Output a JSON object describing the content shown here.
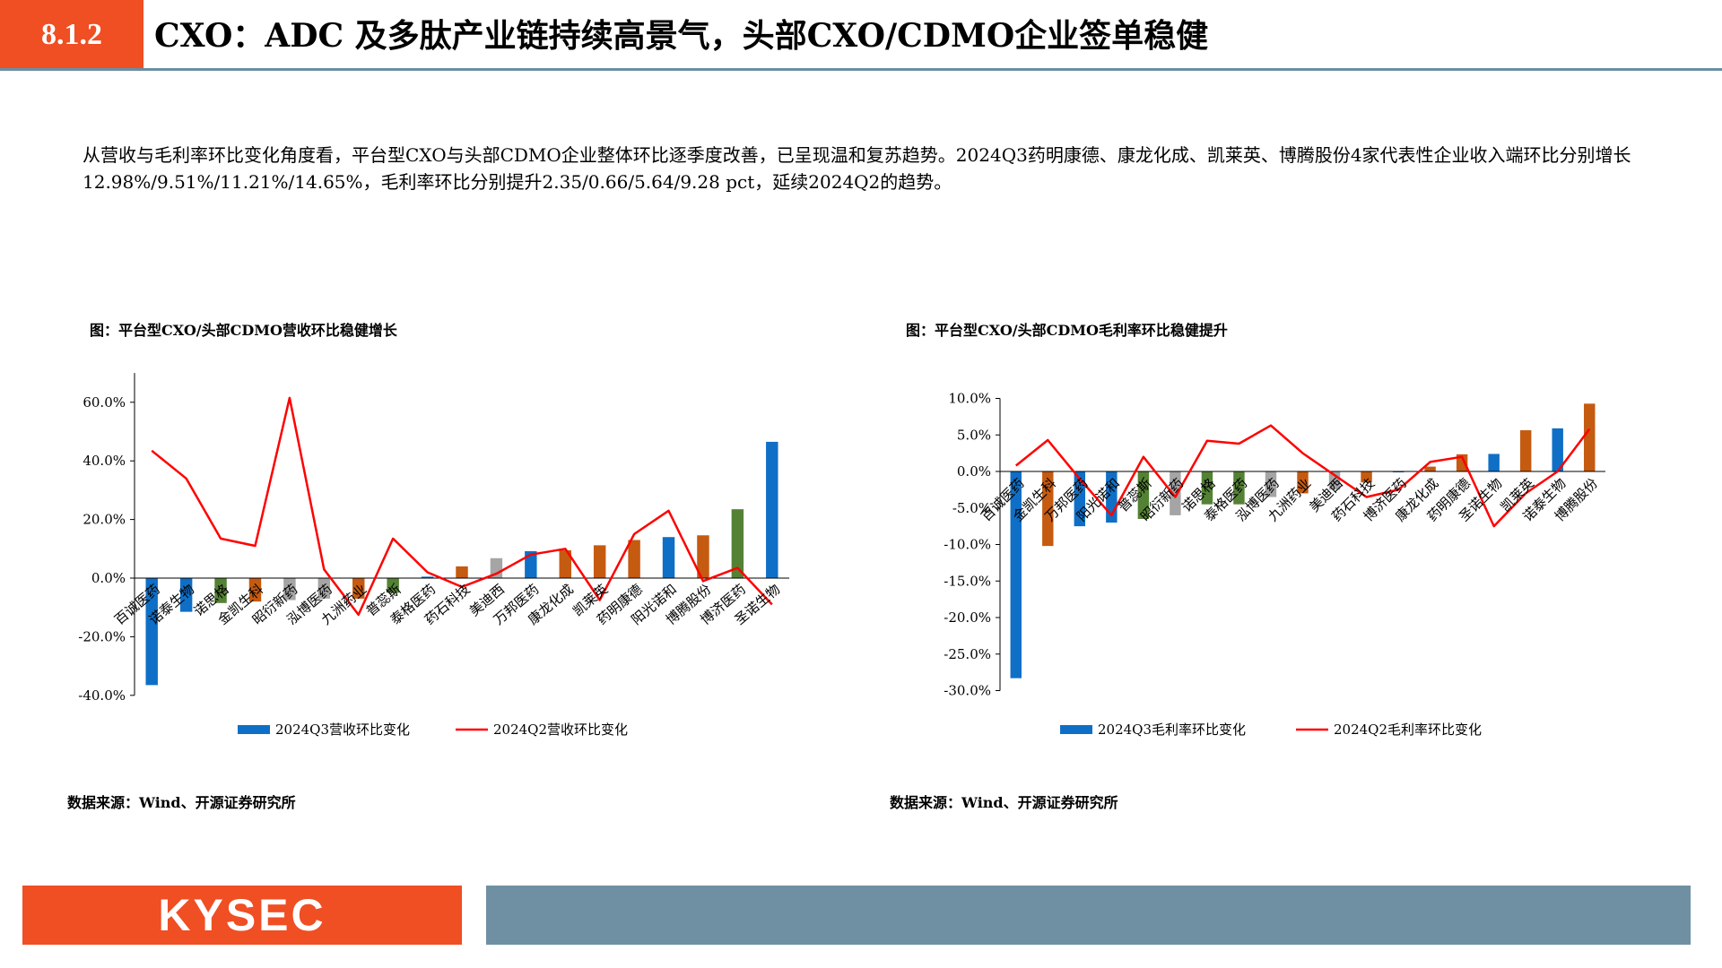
{
  "header": {
    "section_number": "8.1.2",
    "title": "CXO：ADC 及多肽产业链持续高景气，头部CXO/CDMO企业签单稳健"
  },
  "intro_text": "从营收与毛利率环比变化角度看，平台型CXO与头部CDMO企业整体环比逐季度改善，已呈现温和复苏趋势。2024Q3药明康德、康龙化成、凯莱英、博腾股份4家代表性企业收入端环比分别增长12.98%/9.51%/11.21%/14.65%，毛利率环比分别提升2.35/0.66/5.64/9.28 pct，延续2024Q2的趋势。",
  "colors": {
    "accent": "#f04e23",
    "bar_blue": "#0f6fc6",
    "bar_orange": "#c55a11",
    "bar_green": "#548235",
    "bar_gray": "#a5a5a5",
    "line_red": "#ff0000",
    "footer_bar": "#6f90a3"
  },
  "footer": {
    "logo_text": "KYSEC"
  },
  "left_chart": {
    "title": "图：平台型CXO/头部CDMO营收环比稳健增长",
    "source": "数据来源：Wind、开源证券研究所"
  },
  "right_chart": {
    "title": "图：平台型CXO/头部CDMO毛利率环比稳健提升",
    "source": "数据来源：Wind、开源证券研究所"
  },
  "chart_data": [
    {
      "type": "bar",
      "title": "图：平台型CXO/头部CDMO营收环比稳健增长",
      "categories": [
        "百诚医药",
        "诺泰生物",
        "诺思格",
        "金凯生科",
        "昭衍新药",
        "泓博医药",
        "九洲药业",
        "普蕊斯",
        "泰格医药",
        "药石科技",
        "美迪西",
        "万邦医药",
        "康龙化成",
        "凯莱英",
        "药明康德",
        "阳光诺和",
        "博腾股份",
        "博济医药",
        "圣诺生物"
      ],
      "bar_colors": [
        "blue",
        "blue",
        "green",
        "orange",
        "gray",
        "gray",
        "orange",
        "green",
        "blue",
        "orange",
        "gray",
        "blue",
        "orange",
        "orange",
        "orange",
        "blue",
        "orange",
        "green",
        "blue"
      ],
      "series": [
        {
          "name": "2024Q3营收环比变化",
          "type": "bar",
          "values": [
            -36.5,
            -11.5,
            -8.5,
            -8.0,
            -7.5,
            -7.0,
            -7.0,
            -5.0,
            0.5,
            4.0,
            6.8,
            9.2,
            9.5,
            11.2,
            13.0,
            14.0,
            14.6,
            23.5,
            46.5
          ]
        },
        {
          "name": "2024Q2营收环比变化",
          "type": "line",
          "values": [
            43.5,
            34.0,
            13.5,
            11.0,
            61.5,
            3.0,
            -12.5,
            13.5,
            2.0,
            -3.0,
            1.5,
            8.0,
            10.0,
            -7.5,
            15.0,
            23.0,
            -1.0,
            3.5,
            -9.0
          ]
        }
      ],
      "ylim": [
        -40,
        70
      ],
      "yticks": [
        "60.0%",
        "40.0%",
        "20.0%",
        "0.0%",
        "-20.0%",
        "-40.0%"
      ],
      "grid": false,
      "legend": "bottom"
    },
    {
      "type": "bar",
      "title": "图：平台型CXO/头部CDMO毛利率环比稳健提升",
      "categories": [
        "百诚医药",
        "金凯生科",
        "万邦医药",
        "阳光诺和",
        "普蕊斯",
        "昭衍新药",
        "诺思格",
        "泰格医药",
        "泓博医药",
        "九洲药业",
        "美迪西",
        "药石科技",
        "博济医药",
        "康龙化成",
        "药明康德",
        "圣诺生物",
        "凯莱英",
        "诺泰生物",
        "博腾股份"
      ],
      "bar_colors": [
        "blue",
        "orange",
        "blue",
        "blue",
        "green",
        "gray",
        "green",
        "green",
        "gray",
        "orange",
        "gray",
        "orange",
        "blue",
        "orange",
        "orange",
        "blue",
        "orange",
        "blue",
        "orange"
      ],
      "series": [
        {
          "name": "2024Q3毛利率环比变化",
          "type": "bar",
          "values": [
            -28.3,
            -10.2,
            -7.5,
            -7.0,
            -6.5,
            -6.0,
            -4.5,
            -4.5,
            -3.5,
            -3.0,
            -2.5,
            -1.5,
            -0.1,
            0.66,
            2.35,
            2.4,
            5.64,
            5.9,
            9.28
          ]
        },
        {
          "name": "2024Q2毛利率环比变化",
          "type": "line",
          "values": [
            0.8,
            4.3,
            -1.0,
            -6.0,
            2.0,
            -3.5,
            4.2,
            3.8,
            6.3,
            2.5,
            -0.5,
            -3.5,
            -2.5,
            1.3,
            2.0,
            -7.5,
            -3.0,
            0.0,
            5.8
          ]
        }
      ],
      "ylim": [
        -30,
        10
      ],
      "yticks": [
        "10.0%",
        "5.0%",
        "0.0%",
        "-5.0%",
        "-10.0%",
        "-15.0%",
        "-20.0%",
        "-25.0%",
        "-30.0%"
      ],
      "grid": false,
      "legend": "bottom"
    }
  ]
}
